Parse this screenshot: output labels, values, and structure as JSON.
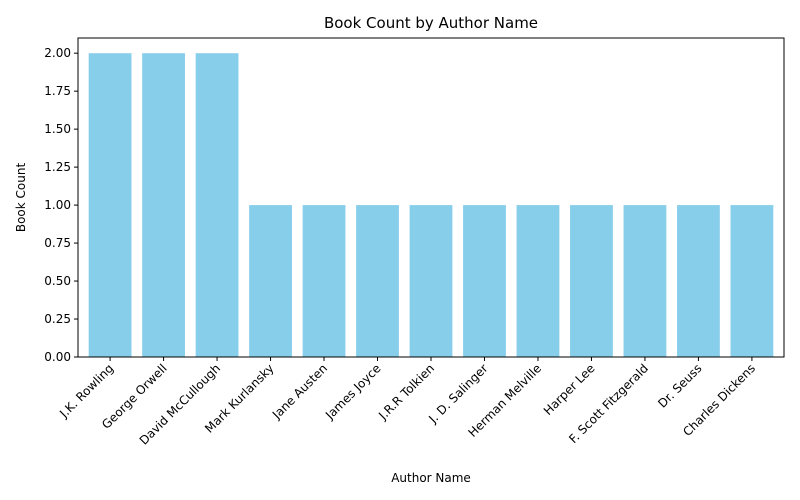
{
  "chart_data": {
    "type": "bar",
    "title": "Book Count by Author Name",
    "xlabel": "Author Name",
    "ylabel": "Book Count",
    "categories": [
      "J.K. Rowling",
      "George Orwell",
      "David McCullough",
      "Mark Kurlansky",
      "Jane Austen",
      "James Joyce",
      "J.R.R Tolkien",
      "J. D. Salinger",
      "Herman Melville",
      "Harper Lee",
      "F. Scott Fitzgerald",
      "Dr. Seuss",
      "Charles Dickens"
    ],
    "values": [
      2,
      2,
      2,
      1,
      1,
      1,
      1,
      1,
      1,
      1,
      1,
      1,
      1
    ],
    "ylim": [
      0,
      2.1
    ],
    "yticks": [
      0,
      0.25,
      0.5,
      0.75,
      1.0,
      1.25,
      1.5,
      1.75,
      2.0
    ],
    "ytick_labels": [
      "0.00",
      "0.25",
      "0.50",
      "0.75",
      "1.00",
      "1.25",
      "1.50",
      "1.75",
      "2.00"
    ],
    "bar_color": "#87ceeb",
    "grid": false,
    "legend": "none"
  }
}
